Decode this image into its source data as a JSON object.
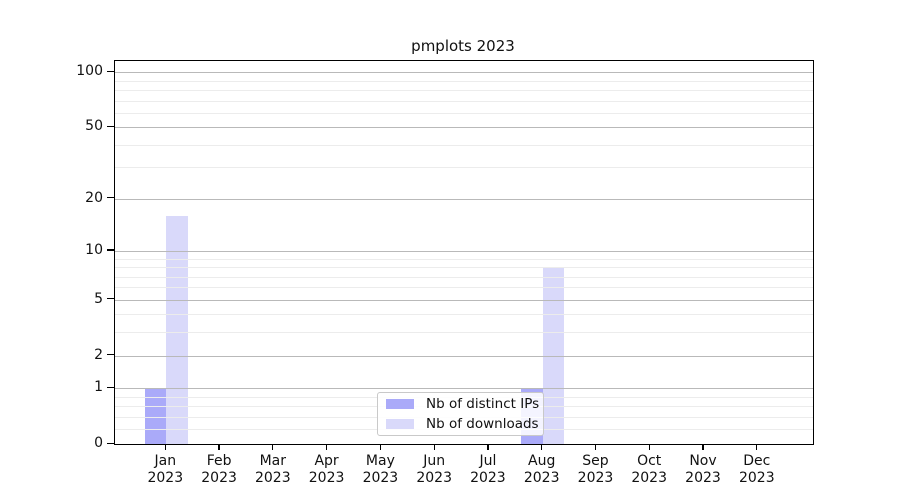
{
  "chart_data": {
    "type": "bar",
    "title": "pmplots 2023",
    "categories": [
      "Jan\n2023",
      "Feb\n2023",
      "Mar\n2023",
      "Apr\n2023",
      "May\n2023",
      "Jun\n2023",
      "Jul\n2023",
      "Aug\n2023",
      "Sep\n2023",
      "Oct\n2023",
      "Nov\n2023",
      "Dec\n2023"
    ],
    "series": [
      {
        "name": "Nb of distinct IPs",
        "color": "#aaaaf9",
        "values": [
          1,
          0,
          0,
          0,
          0,
          0,
          0,
          1,
          0,
          0,
          0,
          0
        ]
      },
      {
        "name": "Nb of downloads",
        "color": "#d9d9fa",
        "values": [
          16,
          0,
          0,
          0,
          0,
          0,
          0,
          8,
          0,
          0,
          0,
          0
        ]
      }
    ],
    "yscale": "log1p",
    "ylim": [
      0,
      115
    ],
    "yticks": [
      0,
      1,
      2,
      5,
      10,
      20,
      50,
      100
    ],
    "yticks_minor": [
      0.2,
      0.4,
      0.6,
      0.8,
      3,
      4,
      6,
      7,
      8,
      9,
      30,
      40,
      60,
      70,
      80,
      90
    ],
    "grid": true,
    "legend": {
      "position": "lower center",
      "border_color": "#c9c9c9"
    },
    "colors": {
      "grid_major": "#b9b9b9",
      "grid_minor": "#ececec",
      "axis": "#000000",
      "text": "#111111",
      "background": "#ffffff"
    }
  }
}
